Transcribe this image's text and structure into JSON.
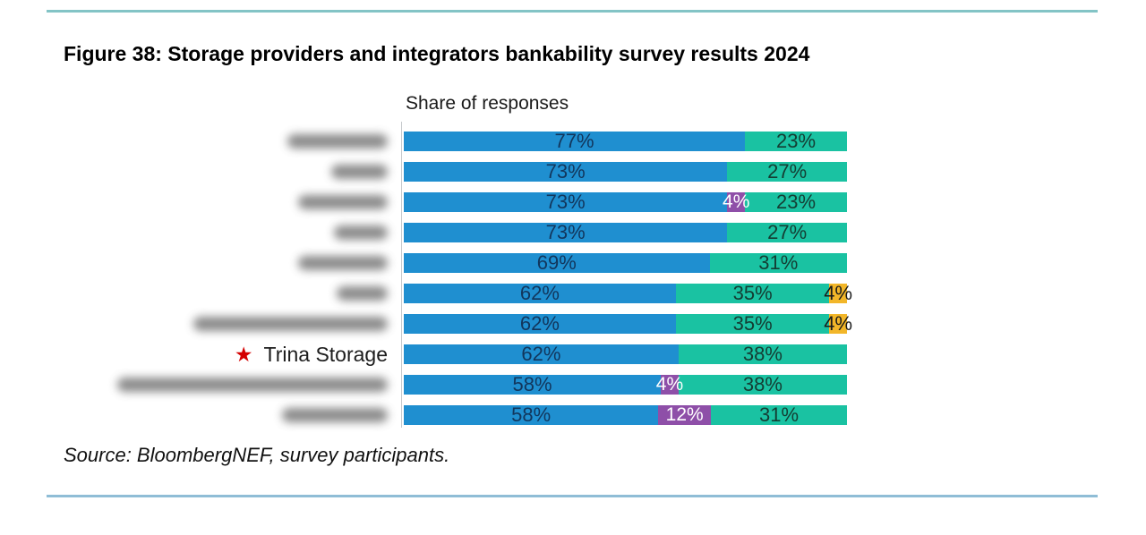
{
  "figure": {
    "title": "Figure 38: Storage providers and integrators bankability survey results 2024",
    "axis_title": "Share of responses",
    "source": "Source: BloombergNEF, survey participants."
  },
  "decorations": {
    "top_rule_color": "#83c4c6",
    "bottom_rule_color": "#8fbdd6",
    "axis_line_color": "#c6c9cc"
  },
  "star_icon": {
    "glyph": "★",
    "color": "#d40000"
  },
  "chart_data": {
    "type": "bar",
    "orientation": "horizontal",
    "stacked": true,
    "unit": "%",
    "x_range": [
      0,
      100
    ],
    "title": "Share of responses",
    "grid": false,
    "legend": "none",
    "series_colors": {
      "blue": "#1f8fd0",
      "green": "#1ac2a2",
      "purple": "#8e4fa8",
      "yellow": "#f2b629"
    },
    "value_label_colors": {
      "blue": "#12365c",
      "green": "#143d33",
      "purple": "#ffffff",
      "yellow": "#1a1a1a"
    },
    "rows": [
      {
        "label": "",
        "label_redacted": true,
        "blur_width": 112,
        "segments": [
          {
            "value": 77,
            "series": "blue"
          },
          {
            "value": 23,
            "series": "green"
          }
        ]
      },
      {
        "label": "",
        "label_redacted": true,
        "blur_width": 63,
        "segments": [
          {
            "value": 73,
            "series": "blue"
          },
          {
            "value": 27,
            "series": "green"
          }
        ]
      },
      {
        "label": "",
        "label_redacted": true,
        "blur_width": 100,
        "segments": [
          {
            "value": 73,
            "series": "blue"
          },
          {
            "value": 4,
            "series": "purple"
          },
          {
            "value": 23,
            "series": "green"
          }
        ]
      },
      {
        "label": "",
        "label_redacted": true,
        "blur_width": 60,
        "segments": [
          {
            "value": 73,
            "series": "blue"
          },
          {
            "value": 27,
            "series": "green"
          }
        ]
      },
      {
        "label": "",
        "label_redacted": true,
        "blur_width": 100,
        "segments": [
          {
            "value": 69,
            "series": "blue"
          },
          {
            "value": 31,
            "series": "green"
          }
        ]
      },
      {
        "label": "",
        "label_redacted": true,
        "blur_width": 57,
        "segments": [
          {
            "value": 62,
            "series": "blue"
          },
          {
            "value": 35,
            "series": "green"
          },
          {
            "value": 4,
            "series": "yellow"
          }
        ]
      },
      {
        "label": "",
        "label_redacted": true,
        "blur_width": 217,
        "segments": [
          {
            "value": 62,
            "series": "blue"
          },
          {
            "value": 35,
            "series": "green"
          },
          {
            "value": 4,
            "series": "yellow"
          }
        ]
      },
      {
        "label": "Trina Storage",
        "label_redacted": false,
        "starred": true,
        "segments": [
          {
            "value": 62,
            "series": "blue"
          },
          {
            "value": 38,
            "series": "green"
          }
        ]
      },
      {
        "label": "",
        "label_redacted": true,
        "blur_width": 302,
        "segments": [
          {
            "value": 58,
            "series": "blue"
          },
          {
            "value": 4,
            "series": "purple"
          },
          {
            "value": 38,
            "series": "green"
          }
        ]
      },
      {
        "label": "",
        "label_redacted": true,
        "blur_width": 118,
        "segments": [
          {
            "value": 58,
            "series": "blue"
          },
          {
            "value": 12,
            "series": "purple"
          },
          {
            "value": 31,
            "series": "green"
          }
        ]
      }
    ]
  }
}
